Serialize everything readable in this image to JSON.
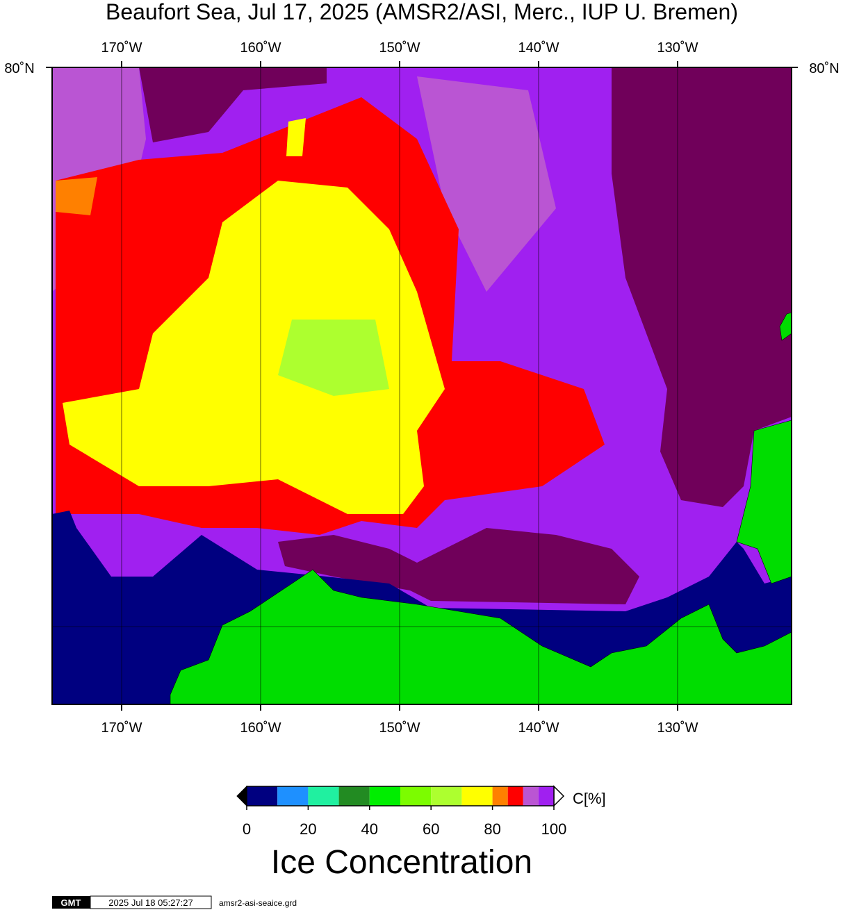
{
  "map": {
    "title": "Beaufort Sea, Jul 17, 2025 (AMSR2/ASI, Merc., IUP U. Bremen)",
    "lon_range": [
      -175,
      -121.8
    ],
    "lon_ticks": [
      {
        "value": -170,
        "label": "170˚W"
      },
      {
        "value": -160,
        "label": "160˚W"
      },
      {
        "value": -150,
        "label": "150˚W"
      },
      {
        "value": -140,
        "label": "140˚W"
      },
      {
        "value": -130,
        "label": "130˚W"
      }
    ],
    "lat_label": "80˚N"
  },
  "colorbar": {
    "range": [
      0,
      100
    ],
    "ticks": [
      0,
      20,
      40,
      60,
      80,
      100
    ],
    "bounds": [
      0,
      10,
      20,
      30,
      40,
      50,
      60,
      70,
      80,
      85,
      90,
      95,
      100
    ],
    "colors": [
      "#000080",
      "#1e90ff",
      "#20f0a0",
      "#228b22",
      "#00ee00",
      "#7cfc00",
      "#adff2f",
      "#ffff00",
      "#ff8000",
      "#ff0000",
      "#ba55d3",
      "#a020f0"
    ],
    "unit_label": "C[%]",
    "title": "Ice Concentration"
  },
  "footer": {
    "logo": "GMT",
    "timestamp": "2025 Jul 18 05:27:27",
    "file": "amsr2-asi-seaice.grd"
  }
}
